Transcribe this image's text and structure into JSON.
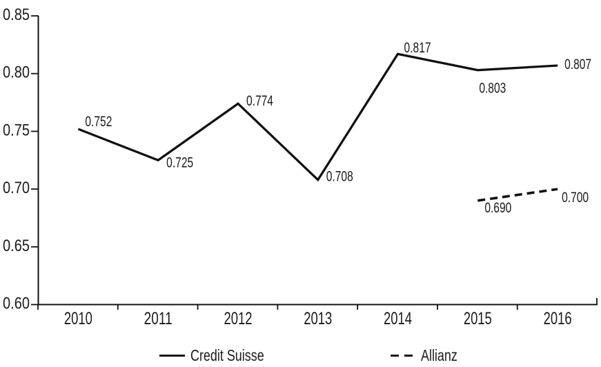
{
  "chart_data": {
    "type": "line",
    "title": "",
    "xlabel": "",
    "ylabel": "",
    "x_categories": [
      "2010",
      "2011",
      "2012",
      "2013",
      "2014",
      "2015",
      "2016"
    ],
    "y_axis": {
      "min": 0.6,
      "max": 0.85,
      "step": 0.05,
      "tick_labels": [
        "0.60",
        "0.65",
        "0.70",
        "0.75",
        "0.80",
        "0.85"
      ]
    },
    "grid": false,
    "legend_position": "bottom",
    "colors": {
      "line": "#111111",
      "text": "#1a1a1a",
      "background": "#ffffff"
    },
    "series": [
      {
        "name": "Credit Suisse",
        "line_style": "solid",
        "x": [
          "2010",
          "2011",
          "2012",
          "2013",
          "2014",
          "2015",
          "2016"
        ],
        "values": [
          0.752,
          0.725,
          0.774,
          0.708,
          0.817,
          0.803,
          0.807
        ],
        "point_labels": [
          "0.752",
          "0.725",
          "0.774",
          "0.708",
          "0.817",
          "0.803",
          "0.807"
        ],
        "label_offsets": [
          [
            10,
            -4
          ],
          [
            12,
            10
          ],
          [
            12,
            3
          ],
          [
            12,
            2
          ],
          [
            9,
            -2
          ],
          [
            2,
            33
          ],
          [
            10,
            5
          ]
        ]
      },
      {
        "name": "Allianz",
        "line_style": "dashed",
        "x": [
          "2015",
          "2016"
        ],
        "values": [
          0.69,
          0.7
        ],
        "point_labels": [
          "0.690",
          "0.700"
        ],
        "label_offsets": [
          [
            10,
            17
          ],
          [
            6,
            19
          ]
        ]
      }
    ]
  }
}
